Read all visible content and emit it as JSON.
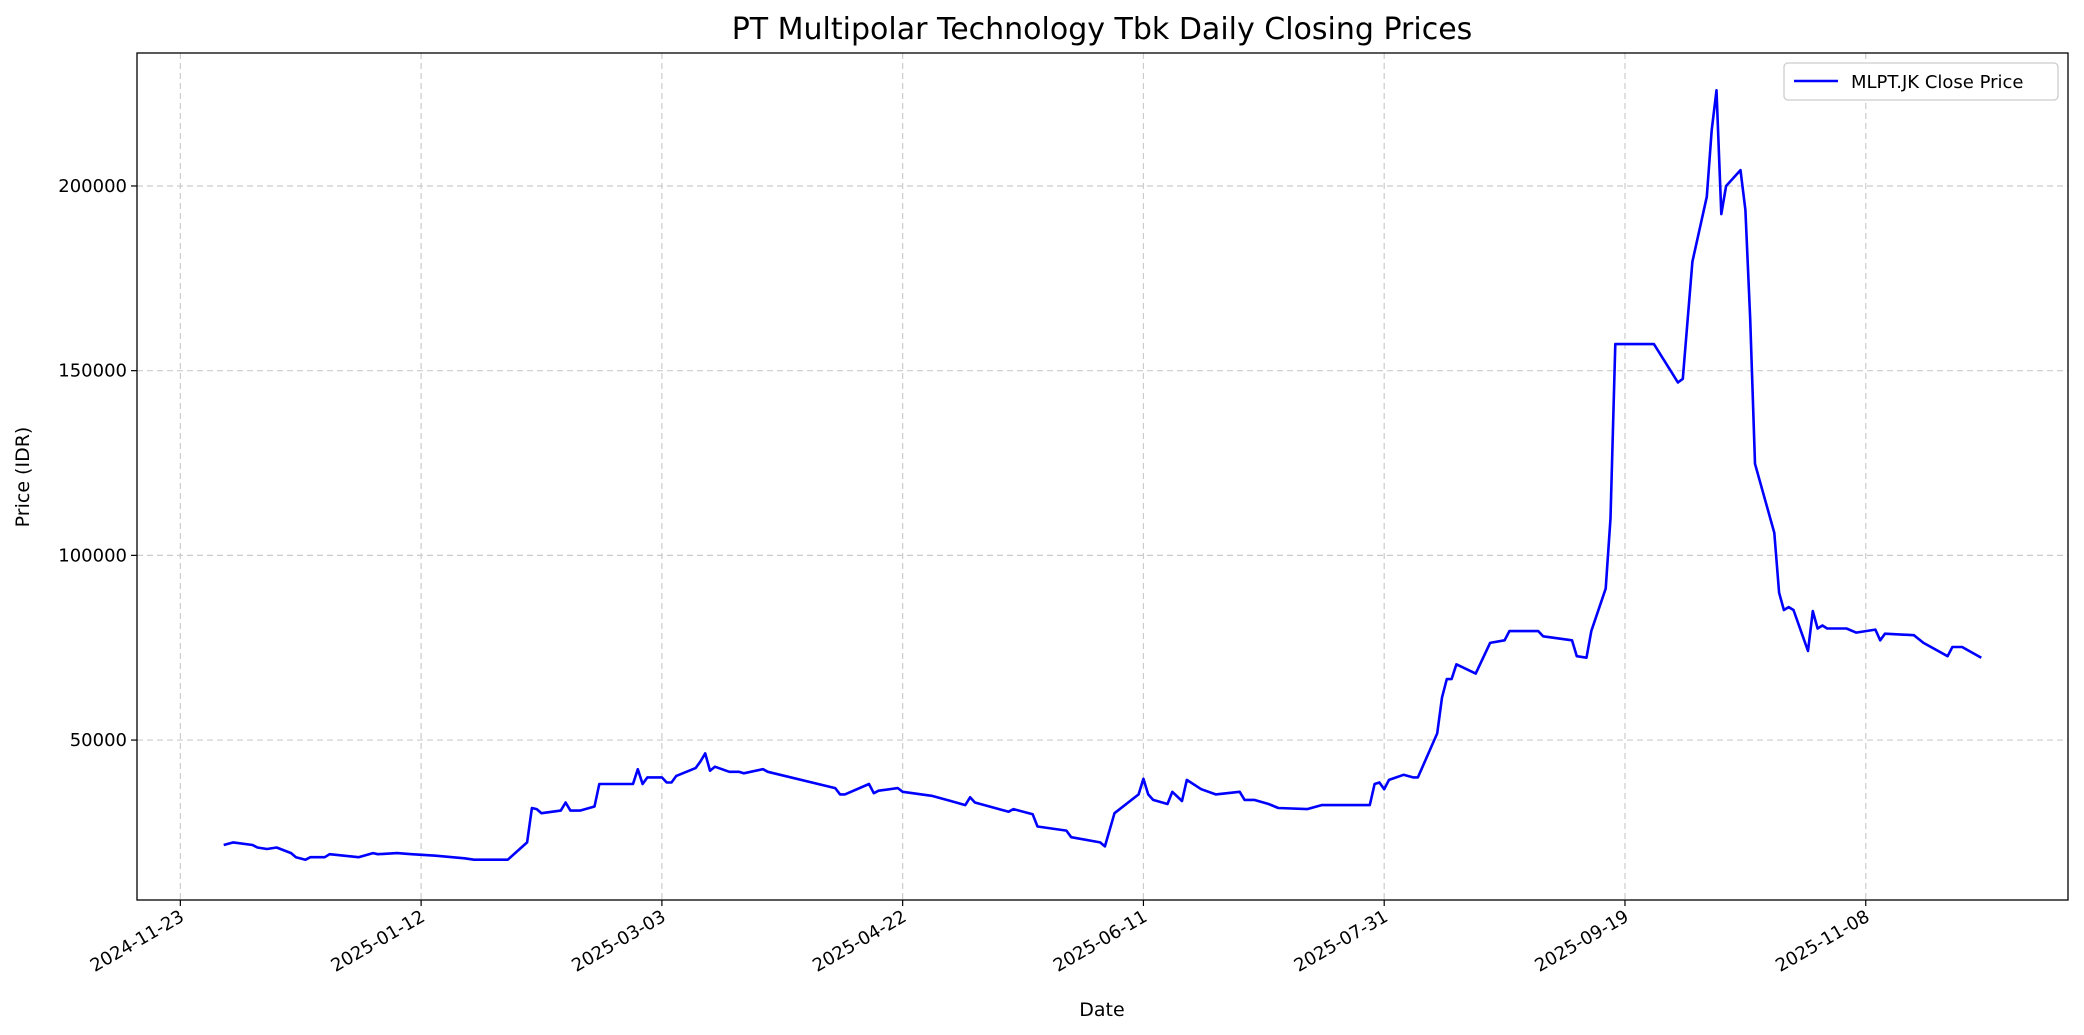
{
  "chart_data": {
    "type": "line",
    "title": "PT Multipolar Technology Tbk Daily Closing Prices",
    "xlabel": "Date",
    "ylabel": "Price (IDR)",
    "xlim": [
      "2024-11-14",
      "2025-12-20"
    ],
    "ylim": [
      6700,
      236000
    ],
    "x_ticks": [
      "2024-11-23",
      "2025-01-12",
      "2025-03-03",
      "2025-04-22",
      "2025-06-11",
      "2025-07-31",
      "2025-09-19",
      "2025-11-08"
    ],
    "y_ticks": [
      50000,
      100000,
      150000,
      200000
    ],
    "grid": true,
    "grid_style": "dashed",
    "legend_position": "top-right",
    "series": [
      {
        "name": "MLPT.JK Close Price",
        "color": "#0000ff",
        "x": [
          "2024-12-02",
          "2024-12-04",
          "2024-12-08",
          "2024-12-09",
          "2024-12-11",
          "2024-12-13",
          "2024-12-16",
          "2024-12-17",
          "2024-12-19",
          "2024-12-20",
          "2024-12-23",
          "2024-12-24",
          "2024-12-30",
          "2025-01-02",
          "2025-01-03",
          "2025-01-07",
          "2025-01-10",
          "2025-01-15",
          "2025-01-21",
          "2025-01-23",
          "2025-01-30",
          "2025-02-03",
          "2025-02-04",
          "2025-02-05",
          "2025-02-06",
          "2025-02-10",
          "2025-02-11",
          "2025-02-12",
          "2025-02-14",
          "2025-02-17",
          "2025-02-18",
          "2025-02-25",
          "2025-02-26",
          "2025-02-27",
          "2025-02-28",
          "2025-03-03",
          "2025-03-04",
          "2025-03-05",
          "2025-03-06",
          "2025-03-10",
          "2025-03-11",
          "2025-03-12",
          "2025-03-13",
          "2025-03-14",
          "2025-03-17",
          "2025-03-19",
          "2025-03-20",
          "2025-03-24",
          "2025-03-25",
          "2025-04-08",
          "2025-04-09",
          "2025-04-10",
          "2025-04-15",
          "2025-04-16",
          "2025-04-17",
          "2025-04-21",
          "2025-04-22",
          "2025-04-28",
          "2025-05-02",
          "2025-05-05",
          "2025-05-06",
          "2025-05-07",
          "2025-05-14",
          "2025-05-15",
          "2025-05-19",
          "2025-05-20",
          "2025-05-26",
          "2025-05-27",
          "2025-06-02",
          "2025-06-03",
          "2025-06-05",
          "2025-06-10",
          "2025-06-11",
          "2025-06-12",
          "2025-06-13",
          "2025-06-16",
          "2025-06-17",
          "2025-06-19",
          "2025-06-20",
          "2025-06-23",
          "2025-06-26",
          "2025-07-01",
          "2025-07-02",
          "2025-07-04",
          "2025-07-07",
          "2025-07-09",
          "2025-07-15",
          "2025-07-18",
          "2025-07-28",
          "2025-07-29",
          "2025-07-30",
          "2025-07-31",
          "2025-08-01",
          "2025-08-04",
          "2025-08-06",
          "2025-08-07",
          "2025-08-11",
          "2025-08-12",
          "2025-08-13",
          "2025-08-14",
          "2025-08-15",
          "2025-08-19",
          "2025-08-22",
          "2025-08-25",
          "2025-08-26",
          "2025-09-01",
          "2025-09-02",
          "2025-09-08",
          "2025-09-09",
          "2025-09-11",
          "2025-09-12",
          "2025-09-15",
          "2025-09-16",
          "2025-09-17",
          "2025-09-25",
          "2025-09-29",
          "2025-09-30",
          "2025-10-01",
          "2025-10-03",
          "2025-10-06",
          "2025-10-07",
          "2025-10-08",
          "2025-10-09",
          "2025-10-10",
          "2025-10-13",
          "2025-10-14",
          "2025-10-15",
          "2025-10-16",
          "2025-10-20",
          "2025-10-21",
          "2025-10-22",
          "2025-10-23",
          "2025-10-24",
          "2025-10-27",
          "2025-10-28",
          "2025-10-29",
          "2025-10-30",
          "2025-10-31",
          "2025-11-04",
          "2025-11-06",
          "2025-11-10",
          "2025-11-11",
          "2025-11-12",
          "2025-11-18",
          "2025-11-20",
          "2025-11-25",
          "2025-11-26",
          "2025-11-28",
          "2025-12-02"
        ],
        "values": [
          21600,
          22300,
          21600,
          20900,
          20500,
          20900,
          19400,
          18300,
          17600,
          18300,
          18300,
          19100,
          18300,
          19400,
          19100,
          19400,
          19100,
          18700,
          18000,
          17600,
          17600,
          22300,
          31600,
          31300,
          30200,
          30900,
          33100,
          30900,
          30900,
          32000,
          38100,
          38100,
          42100,
          38100,
          39900,
          39900,
          38500,
          38500,
          40300,
          42400,
          44200,
          46400,
          41700,
          42800,
          41400,
          41400,
          41000,
          42100,
          41400,
          37000,
          35300,
          35300,
          38100,
          35600,
          36300,
          37000,
          36000,
          34900,
          33500,
          32400,
          34500,
          33100,
          30600,
          31300,
          29900,
          26600,
          25500,
          23700,
          22300,
          21200,
          30200,
          35300,
          39500,
          35300,
          33800,
          32700,
          36000,
          33500,
          39200,
          36700,
          35300,
          36000,
          33800,
          33800,
          32700,
          31600,
          31300,
          32400,
          32400,
          38100,
          38500,
          36700,
          39200,
          40600,
          39900,
          39900,
          51800,
          61500,
          66500,
          66500,
          70500,
          68000,
          76300,
          77000,
          79500,
          79500,
          78100,
          77000,
          72700,
          72300,
          79500,
          91000,
          110000,
          157200,
          157200,
          148900,
          146800,
          147800,
          179500,
          197100,
          215100,
          225900,
          192400,
          200000,
          204300,
          193500,
          164000,
          124800,
          106100,
          89900,
          85200,
          86000,
          85200,
          74100,
          84900,
          80200,
          81000,
          80200,
          80200,
          79100,
          79900,
          77000,
          78800,
          78400,
          76300,
          72700,
          75200,
          75200,
          72300
        ]
      }
    ]
  }
}
